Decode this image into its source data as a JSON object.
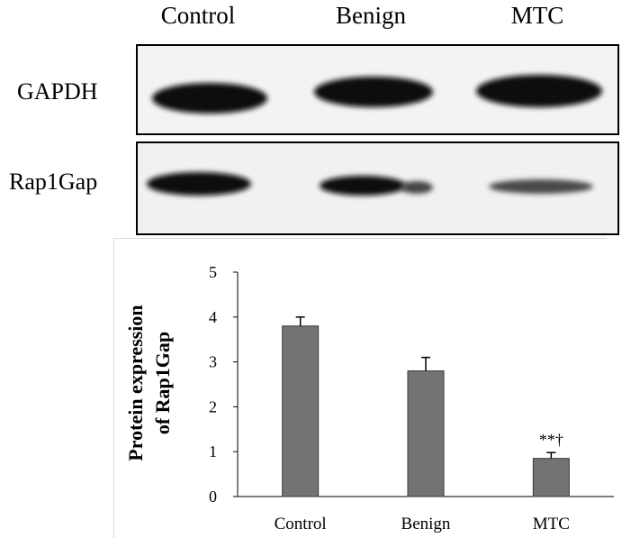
{
  "blot": {
    "lanes": [
      "Control",
      "Benign",
      "MTC"
    ],
    "rows": [
      "GAPDH",
      "Rap1Gap"
    ]
  },
  "chart_data": {
    "type": "bar",
    "categories": [
      "Control",
      "Benign",
      "MTC"
    ],
    "values": [
      3.8,
      2.8,
      0.85
    ],
    "errors": [
      0.2,
      0.3,
      0.13
    ],
    "annotations": [
      {
        "category": "MTC",
        "text": "**†"
      }
    ],
    "title": "",
    "xlabel": "",
    "ylabel": "Protein expression of Rap1Gap",
    "ylabel_lines": [
      "Protein expression",
      "of Rap1Gap"
    ],
    "ylim": [
      0,
      5
    ],
    "yticks": [
      0,
      1,
      2,
      3,
      4,
      5
    ],
    "grid": false,
    "colors": {
      "bar": "#737373",
      "bar_edge": "#3a3a3a",
      "error": "#000000"
    }
  }
}
